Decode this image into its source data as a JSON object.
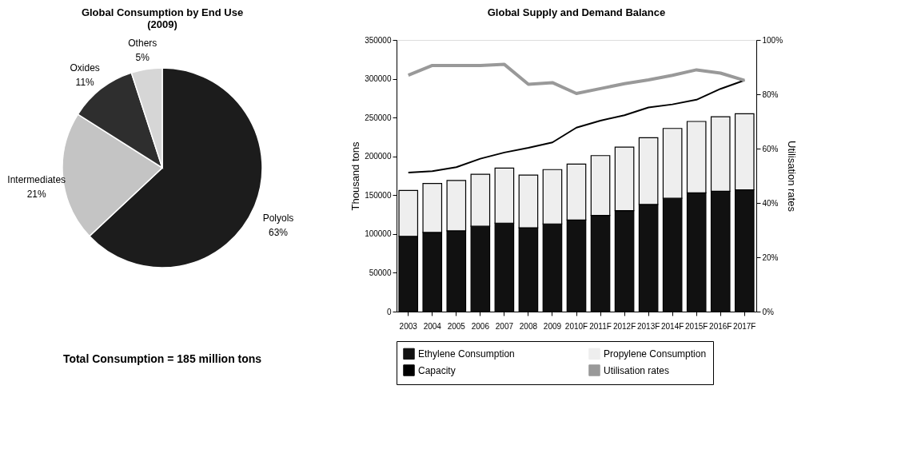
{
  "chart_data": [
    {
      "type": "pie",
      "title": "Global Consumption by End Use (2009)",
      "categories": [
        "Polyols",
        "Intermediates",
        "Oxides",
        "Others"
      ],
      "values": [
        63,
        21,
        11,
        5
      ],
      "value_labels": [
        "63%",
        "21%",
        "11%",
        "5%"
      ],
      "colors": [
        "#1c1c1c",
        "#c4c4c4",
        "#2e2e2e",
        "#d6d6d6"
      ],
      "annotations": [
        "Total Consumption = 185 million tons"
      ]
    },
    {
      "type": "bar",
      "title": "Global Supply and Demand Balance",
      "categories": [
        "2003",
        "2004",
        "2005",
        "2006",
        "2007",
        "2008",
        "2009",
        "2010F",
        "2011F",
        "2012F",
        "2013F",
        "2014F",
        "2015F",
        "2016F",
        "2017F"
      ],
      "ylabel": "Thousand tons",
      "y2label": "Utilisation rates",
      "ylim": [
        0,
        350000
      ],
      "yticks": [
        0,
        50000,
        100000,
        150000,
        200000,
        250000,
        300000,
        350000
      ],
      "y2lim": [
        0,
        100
      ],
      "y2ticks": [
        {
          "value": 0,
          "label": "0%"
        },
        {
          "value": 20,
          "label": "20%"
        },
        {
          "value": 40,
          "label": "40%"
        },
        {
          "value": 60,
          "label": "60%"
        },
        {
          "value": 80,
          "label": "80%"
        },
        {
          "value": 100,
          "label": "100%"
        }
      ],
      "stacked": true,
      "legend": "bottom",
      "series": [
        {
          "name": "Ethylene Consumption",
          "color": "#111111",
          "values": [
            97000,
            102000,
            104000,
            110000,
            114000,
            108000,
            113000,
            118000,
            124000,
            130000,
            138000,
            146000,
            153000,
            155000,
            157000
          ]
        },
        {
          "name": "Propylene Consumption",
          "color": "#eeeeee",
          "values": [
            59000,
            63000,
            65000,
            67000,
            71000,
            68000,
            70000,
            72000,
            77000,
            82000,
            86000,
            90000,
            92000,
            96000,
            98000
          ]
        },
        {
          "name": "Capacity",
          "type": "line",
          "color": "#000000",
          "values": [
            179000,
            181000,
            186000,
            197000,
            205000,
            211000,
            218000,
            237000,
            246000,
            253000,
            263000,
            267000,
            273000,
            287000,
            298000
          ]
        },
        {
          "name": "Utilisation rates",
          "type": "line",
          "axis": "y2",
          "color": "#999999",
          "values": [
            87,
            90.6,
            90.6,
            90.6,
            91,
            83.7,
            84.3,
            80.3,
            82.1,
            83.9,
            85.3,
            87,
            89,
            87.8,
            85.1
          ]
        }
      ]
    }
  ]
}
